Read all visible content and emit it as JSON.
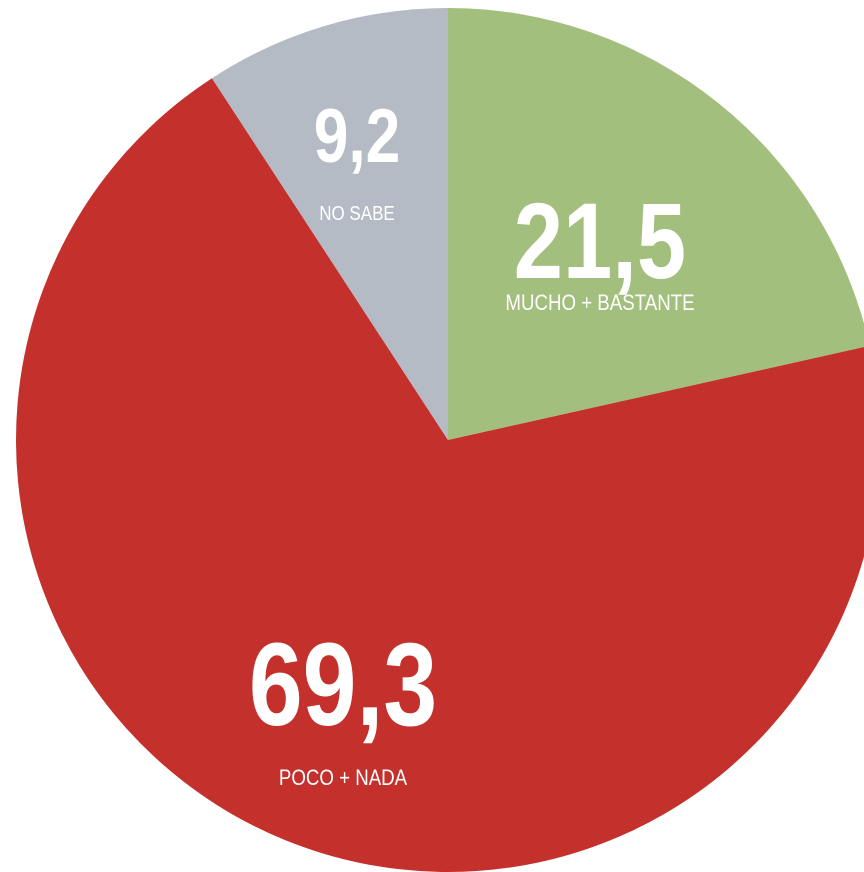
{
  "chart_data": {
    "type": "pie",
    "categories": [
      "MUCHO + BASTANTE",
      "POCO + NADA",
      "NO SABE"
    ],
    "values": [
      21.5,
      69.3,
      9.2
    ],
    "value_labels": [
      "21,5",
      "69,3",
      "9,2"
    ],
    "colors": [
      "#a3bf7e",
      "#c4302c",
      "#b4bbc4"
    ]
  }
}
